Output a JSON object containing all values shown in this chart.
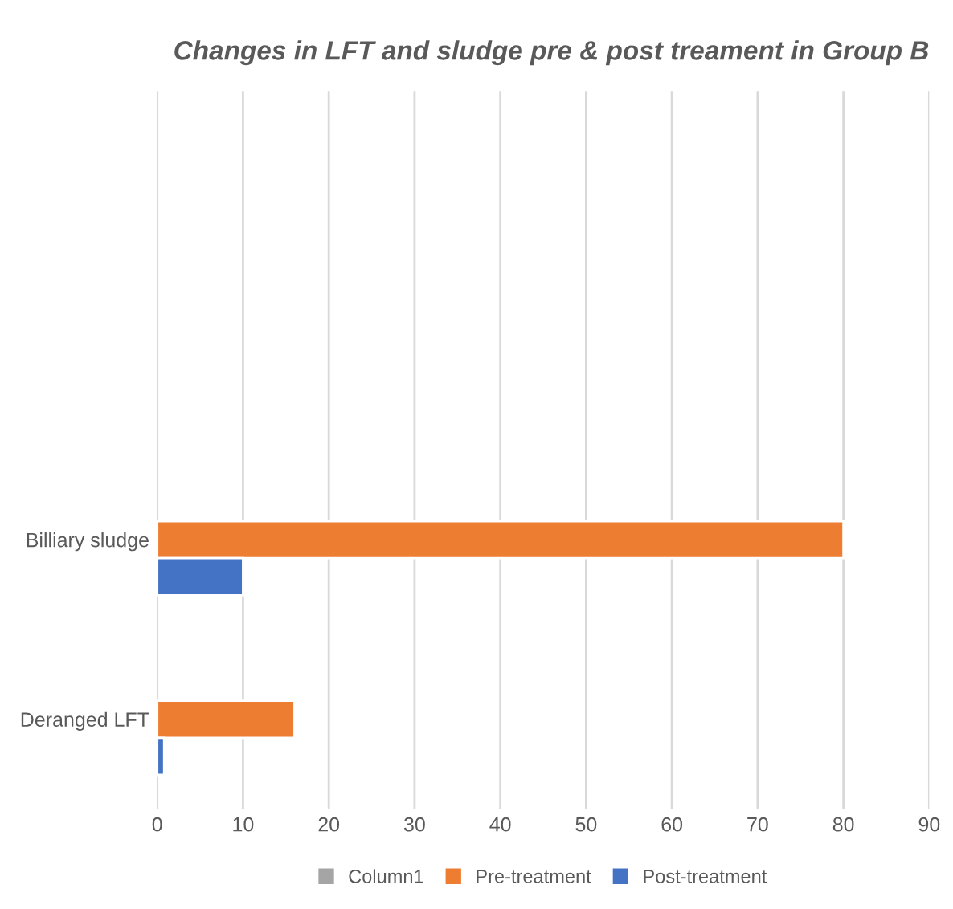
{
  "chart_data": {
    "type": "bar",
    "orientation": "horizontal",
    "title": "Changes in LFT and sludge pre & post treament in Group B",
    "categories": [
      null,
      null,
      "Billiary sludge",
      "Deranged LFT"
    ],
    "series": [
      {
        "name": "Column1",
        "color": "#a5a5a5",
        "values": [
          null,
          null,
          null,
          null
        ]
      },
      {
        "name": "Pre-treatment",
        "color": "#ed7d31",
        "values": [
          null,
          null,
          80,
          16
        ]
      },
      {
        "name": "Post-treatment",
        "color": "#4472c4",
        "values": [
          null,
          null,
          10,
          0.8
        ]
      }
    ],
    "xlim": [
      0,
      90
    ],
    "xticks": [
      0,
      10,
      20,
      30,
      40,
      50,
      60,
      70,
      80,
      90
    ],
    "grid": "x",
    "legend": "bottom"
  }
}
